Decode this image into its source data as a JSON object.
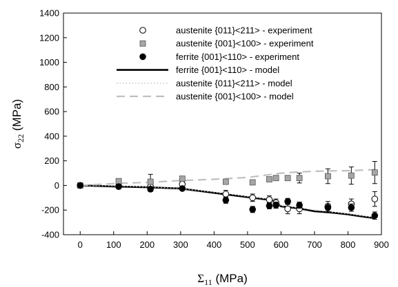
{
  "chart_data": {
    "type": "scatter",
    "xlabel": "Σ",
    "xlabel_sub": "11",
    "xlabel_unit": " (MPa)",
    "ylabel": "σ",
    "ylabel_sub": "22",
    "ylabel_unit": " (MPa)",
    "xlim": [
      -50,
      900
    ],
    "ylim": [
      -400,
      1400
    ],
    "xticks": [
      0,
      100,
      200,
      300,
      400,
      500,
      600,
      700,
      800,
      900
    ],
    "yticks": [
      -400,
      -200,
      0,
      200,
      400,
      600,
      800,
      1000,
      1200,
      1400
    ],
    "grid": false,
    "legend_position": "top-right",
    "colors": {
      "austenite_011_exp": "#000000",
      "austenite_001_exp": "#a6a6a6",
      "ferrite_exp": "#000000",
      "ferrite_model": "#000000",
      "austenite_011_model": "#bfbfbf",
      "austenite_001_model": "#bfbfbf"
    },
    "series": [
      {
        "name": "austenite {011}<211> - experiment",
        "kind": "open-circle",
        "x": [
          0,
          115,
          210,
          305,
          435,
          515,
          565,
          585,
          620,
          655,
          740,
          810,
          880
        ],
        "y": [
          0,
          -5,
          -10,
          10,
          -70,
          -100,
          -115,
          -140,
          -190,
          -190,
          -170,
          -150,
          -110
        ],
        "err": [
          0,
          0,
          0,
          0,
          30,
          30,
          30,
          30,
          40,
          40,
          40,
          40,
          60
        ]
      },
      {
        "name": "austenite {001}<100> - experiment",
        "kind": "grey-square",
        "x": [
          0,
          115,
          210,
          305,
          435,
          515,
          565,
          585,
          620,
          655,
          740,
          810,
          880
        ],
        "y": [
          0,
          35,
          30,
          55,
          30,
          25,
          50,
          60,
          60,
          60,
          75,
          80,
          105
        ],
        "err": [
          0,
          0,
          60,
          0,
          0,
          0,
          0,
          0,
          0,
          40,
          60,
          70,
          90
        ]
      },
      {
        "name": "ferrite {001}<110> - experiment",
        "kind": "filled-circle",
        "x": [
          0,
          115,
          210,
          305,
          435,
          515,
          565,
          585,
          620,
          655,
          740,
          810,
          880
        ],
        "y": [
          0,
          -10,
          -30,
          -25,
          -120,
          -195,
          -165,
          -160,
          -130,
          -160,
          -180,
          -180,
          -245
        ],
        "err": [
          0,
          0,
          20,
          0,
          25,
          25,
          25,
          25,
          25,
          25,
          30,
          30,
          30
        ]
      },
      {
        "name": "ferrite {001}<110> - model",
        "kind": "solid-line",
        "x": [
          0,
          100,
          200,
          300,
          400,
          500,
          560,
          580,
          600,
          650,
          700,
          750,
          800,
          850,
          880
        ],
        "y": [
          0,
          -8,
          -15,
          -25,
          -60,
          -95,
          -115,
          -125,
          -170,
          -185,
          -210,
          -220,
          -235,
          -255,
          -265
        ]
      },
      {
        "name": "austenite {011}<211>  - model",
        "kind": "dotted-line",
        "x": [
          0,
          100,
          200,
          300,
          400,
          500,
          560,
          580,
          600,
          650,
          700,
          750,
          800,
          850,
          880
        ],
        "y": [
          0,
          -5,
          -12,
          -25,
          -55,
          -90,
          -110,
          -125,
          -165,
          -180,
          -200,
          -215,
          -230,
          -250,
          -262
        ]
      },
      {
        "name": "austenite {001}<100>  - model",
        "kind": "dashed-line",
        "x": [
          0,
          100,
          200,
          300,
          400,
          500,
          560,
          600,
          650,
          700,
          750,
          800,
          850,
          880
        ],
        "y": [
          0,
          15,
          25,
          40,
          50,
          65,
          85,
          100,
          110,
          115,
          118,
          120,
          125,
          128
        ]
      }
    ]
  }
}
